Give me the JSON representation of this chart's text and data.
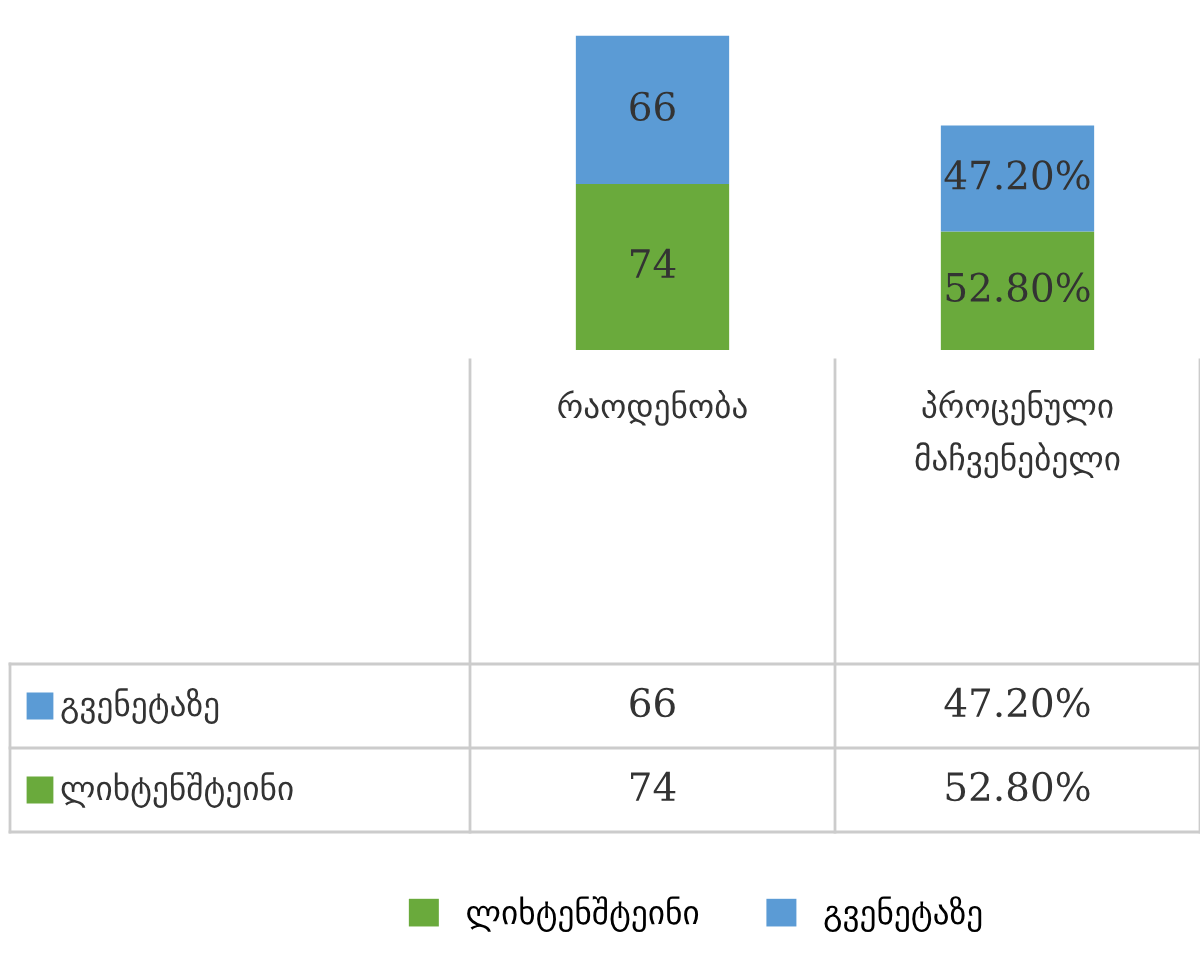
{
  "chart_data": {
    "type": "bar",
    "stacked": true,
    "data_labels": true,
    "categories": [
      "რაოდენობა",
      "პროცენული მაჩვენებელი"
    ],
    "series": [
      {
        "name": "ლიხტენშტეინი",
        "color": "#6aaa3c",
        "values": [
          74,
          52.8
        ],
        "value_labels": [
          "74",
          "52.80%"
        ]
      },
      {
        "name": "გვენეტაზე",
        "color": "#5b9bd5",
        "values": [
          66,
          47.2
        ],
        "value_labels": [
          "66",
          "47.20%"
        ]
      }
    ],
    "legend": "bottom"
  }
}
